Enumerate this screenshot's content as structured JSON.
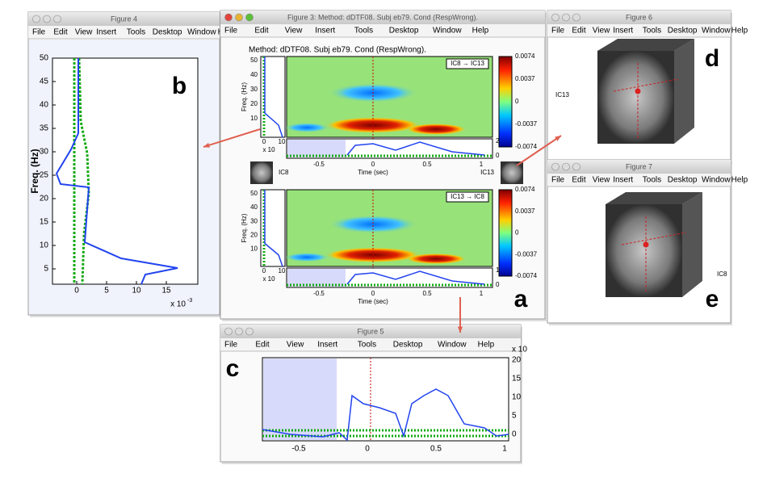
{
  "panel_labels": [
    "a",
    "b",
    "c",
    "d",
    "e"
  ],
  "menu": [
    "File",
    "Edit",
    "View",
    "Insert",
    "Tools",
    "Desktop",
    "Window",
    "Help"
  ],
  "windows": {
    "fig4": {
      "title": "Figure 4",
      "ylabel": "Freq. (Hz)",
      "yticks": [
        50,
        45,
        40,
        35,
        30,
        25,
        20,
        15,
        10,
        5
      ],
      "xticks": [
        0,
        5,
        10,
        15
      ],
      "scale": "x 10",
      "exponent": "-3"
    },
    "fig3": {
      "title": "Figure 3: Method: dDTF08. Subj eb79. Cond (RespWrong).",
      "subtitle": "Method: dDTF08. Subj eb79. Cond (RespWrong).",
      "top_legend": "IC8 → IC13",
      "bottom_legend": "IC13 → IC8",
      "colorbar": [
        0.0074,
        0.0037,
        0,
        -0.0037,
        -0.0074
      ],
      "freq_ticks": [
        50,
        40,
        30,
        20,
        10
      ],
      "time_ticks": [
        -0.5,
        0,
        0.5,
        1
      ],
      "ylabel": "Freq. (Hz)",
      "xlabel": "Time (sec)",
      "left": "IC8",
      "right": "IC13",
      "scale": "x 10",
      "small_ticks": [
        0,
        10
      ],
      "top_series_ticks": [
        20,
        0
      ],
      "bottom_series_ticks": [
        10,
        0
      ]
    },
    "fig5": {
      "title": "Figure 5",
      "xticks": [
        -0.5,
        0,
        0.5,
        1
      ],
      "yticks": [
        20,
        15,
        10,
        5,
        0
      ],
      "scale": "x 10"
    },
    "fig6": {
      "title": "Figure 6",
      "label": "IC13"
    },
    "fig7": {
      "title": "Figure 7",
      "label": "IC8"
    }
  }
}
